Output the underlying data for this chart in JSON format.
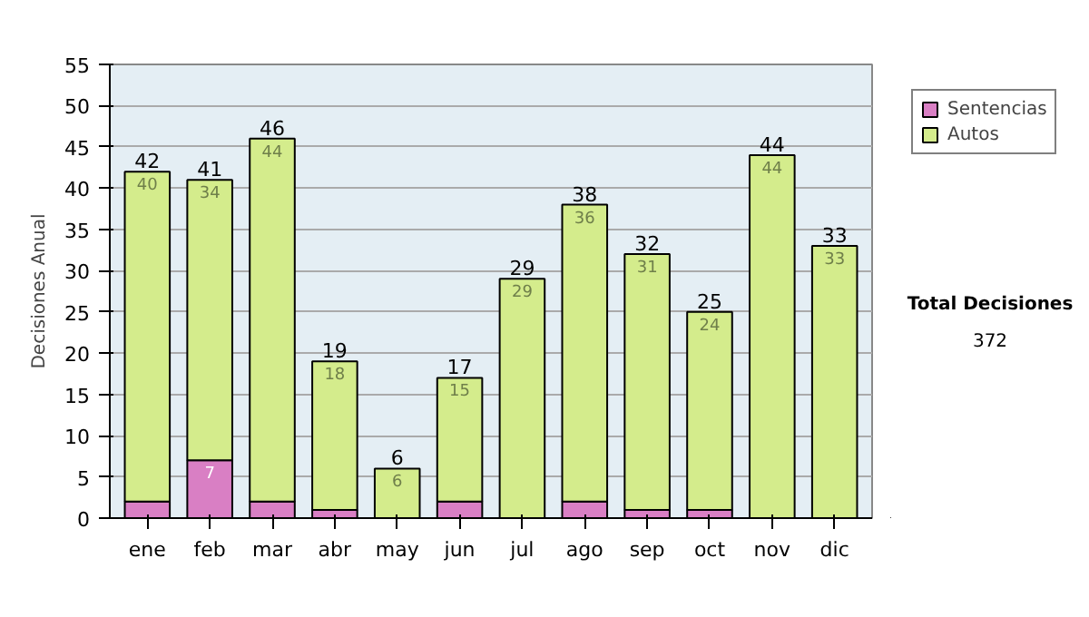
{
  "chart_data": {
    "type": "bar",
    "stacked": true,
    "ylabel": "Decisiones Anual",
    "categories": [
      "ene",
      "feb",
      "mar",
      "abr",
      "may",
      "jun",
      "jul",
      "ago",
      "sep",
      "oct",
      "nov",
      "dic"
    ],
    "series": [
      {
        "name": "Sentencias",
        "color": "#d97fc4",
        "values": [
          2,
          7,
          2,
          1,
          0,
          2,
          0,
          2,
          1,
          1,
          0,
          0
        ],
        "value_labels": [
          null,
          "7",
          null,
          null,
          null,
          null,
          null,
          null,
          null,
          null,
          null,
          null
        ]
      },
      {
        "name": "Autos",
        "color": "#d4ec8c",
        "values": [
          40,
          34,
          44,
          18,
          6,
          15,
          29,
          36,
          31,
          24,
          44,
          33
        ],
        "value_labels": [
          "40",
          "34",
          "44",
          "18",
          "6",
          "15",
          "29",
          "36",
          "31",
          "24",
          "44",
          "33"
        ]
      }
    ],
    "totals": [
      "42",
      "41",
      "46",
      "19",
      "6",
      "17",
      "29",
      "38",
      "32",
      "25",
      "44",
      "33"
    ],
    "ylim": [
      0,
      55
    ],
    "yticks": [
      0,
      5,
      10,
      15,
      20,
      25,
      30,
      35,
      40,
      45,
      50,
      55
    ],
    "grid": "y",
    "legend": "right",
    "annotations": [
      "Total Decisiones",
      "372"
    ]
  }
}
